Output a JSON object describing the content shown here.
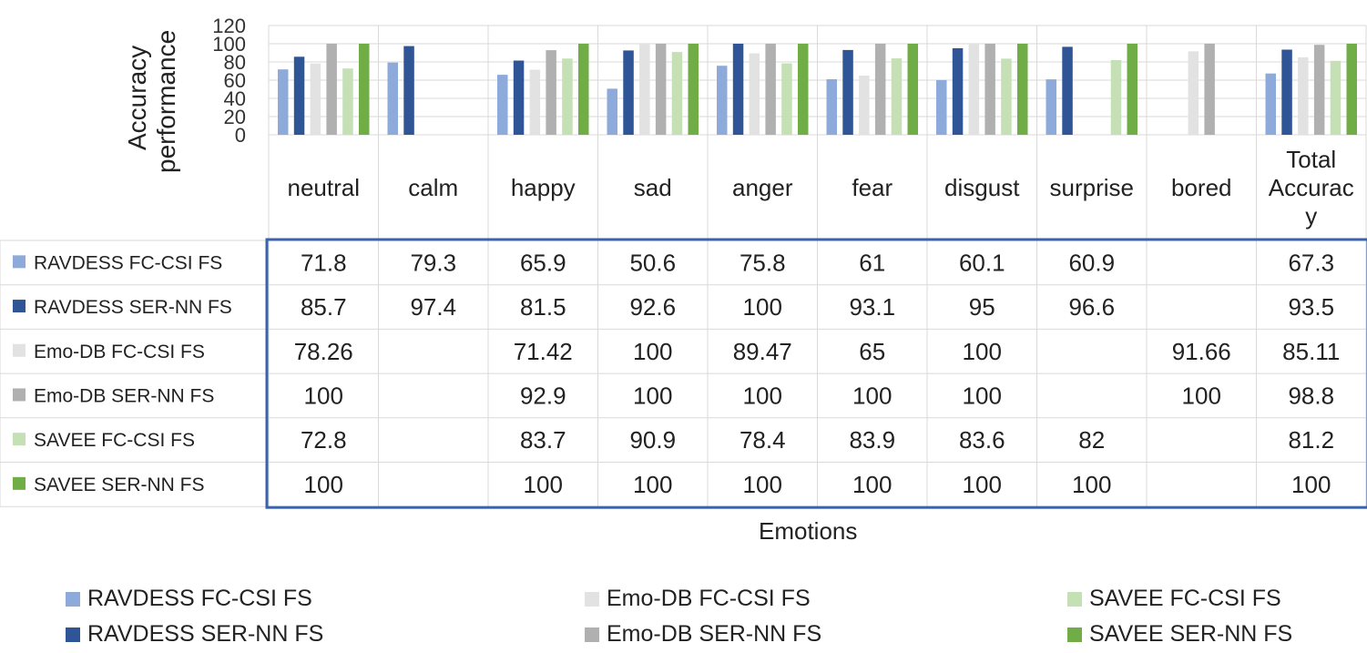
{
  "chart_data": {
    "type": "bar",
    "title": "",
    "ylabel": "Accuracy performance",
    "xlabel": "Emotions",
    "ylim": [
      0,
      120
    ],
    "yticks": [
      0,
      20,
      40,
      60,
      80,
      100,
      120
    ],
    "grid": true,
    "legend_position": "bottom",
    "categories": [
      "neutral",
      "calm",
      "happy",
      "sad",
      "anger",
      "fear",
      "disgust",
      "surprise",
      "bored",
      "Total Accuracy"
    ],
    "category_labels": [
      [
        "neutral"
      ],
      [
        "calm"
      ],
      [
        "happy"
      ],
      [
        "sad"
      ],
      [
        "anger"
      ],
      [
        "fear"
      ],
      [
        "disgust"
      ],
      [
        "surprise"
      ],
      [
        "bored"
      ],
      [
        "Total",
        "Accurac",
        "y"
      ]
    ],
    "series": [
      {
        "name": "RAVDESS FC-CSI FS",
        "color": "#8eaadb",
        "values": [
          71.8,
          79.3,
          65.9,
          50.6,
          75.8,
          61,
          60.1,
          60.9,
          null,
          67.3
        ]
      },
      {
        "name": "RAVDESS SER-NN FS",
        "color": "#2f5597",
        "values": [
          85.7,
          97.4,
          81.5,
          92.6,
          100,
          93.1,
          95,
          96.6,
          null,
          93.5
        ]
      },
      {
        "name": "Emo-DB FC-CSI FS",
        "color": "#e2e2e2",
        "values": [
          78.26,
          null,
          71.42,
          100,
          89.47,
          65,
          100,
          null,
          91.66,
          85.11
        ]
      },
      {
        "name": "Emo-DB SER-NN FS",
        "color": "#b0b0b0",
        "values": [
          100,
          null,
          92.9,
          100,
          100,
          100,
          100,
          null,
          100,
          98.8
        ]
      },
      {
        "name": "SAVEE FC-CSI FS",
        "color": "#c5e0b4",
        "values": [
          72.8,
          null,
          83.7,
          90.9,
          78.4,
          83.9,
          83.6,
          82,
          null,
          81.2
        ]
      },
      {
        "name": "SAVEE SER-NN FS",
        "color": "#70ad47",
        "values": [
          100,
          null,
          100,
          100,
          100,
          100,
          100,
          100,
          null,
          100
        ]
      }
    ],
    "table_cells": [
      [
        "71.8",
        "79.3",
        "65.9",
        "50.6",
        "75.8",
        "61",
        "60.1",
        "60.9",
        "",
        "67.3"
      ],
      [
        "85.7",
        "97.4",
        "81.5",
        "92.6",
        "100",
        "93.1",
        "95",
        "96.6",
        "",
        "93.5"
      ],
      [
        "78.26",
        "",
        "71.42",
        "100",
        "89.47",
        "65",
        "100",
        "",
        "91.66",
        "85.11"
      ],
      [
        "100",
        "",
        "92.9",
        "100",
        "100",
        "100",
        "100",
        "",
        "100",
        "98.8"
      ],
      [
        "72.8",
        "",
        "83.7",
        "90.9",
        "78.4",
        "83.9",
        "83.6",
        "82",
        "",
        "81.2"
      ],
      [
        "100",
        "",
        "100",
        "100",
        "100",
        "100",
        "100",
        "100",
        "",
        "100"
      ]
    ]
  },
  "labels": {
    "ylabel_line1": "Accuracy",
    "ylabel_line2": "performance",
    "xaxis_title": "Emotions"
  }
}
